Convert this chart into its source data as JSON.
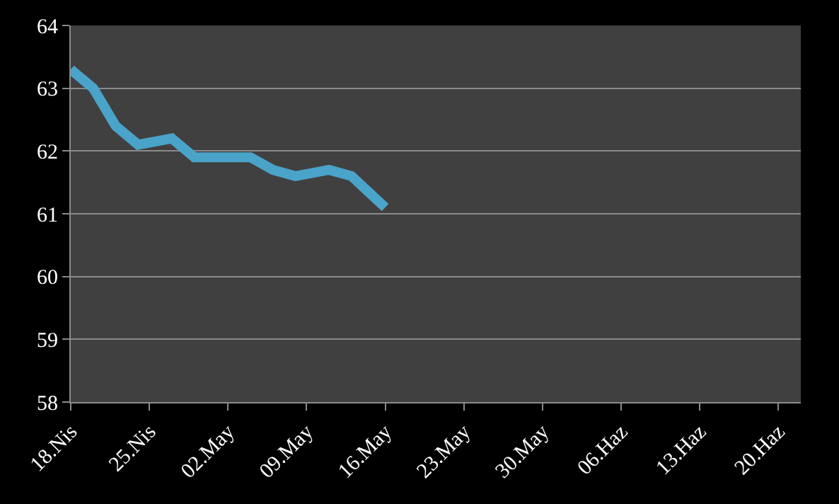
{
  "chart_data": {
    "type": "line",
    "x": [
      "--04-18",
      "--04-20",
      "--04-22",
      "--04-24",
      "--04-27",
      "--04-29",
      "--05-04",
      "--05-06",
      "--05-08",
      "--05-11",
      "--05-13",
      "--05-16"
    ],
    "series": [
      {
        "color": "#4aa3c8",
        "values": [
          63.3,
          63.0,
          62.4,
          62.1,
          62.2,
          61.9,
          61.9,
          61.7,
          61.6,
          61.7,
          61.6,
          61.1
        ]
      }
    ],
    "xlim": [
      "--04-18",
      "--06-22"
    ],
    "xticks": [
      {
        "value": "--04-18",
        "label": "18.Nis"
      },
      {
        "value": "--04-25",
        "label": "25.Nis"
      },
      {
        "value": "--05-02",
        "label": "02.May"
      },
      {
        "value": "--05-09",
        "label": "09.May"
      },
      {
        "value": "--05-16",
        "label": "16.May"
      },
      {
        "value": "--05-23",
        "label": "23.May"
      },
      {
        "value": "--05-30",
        "label": "30.May"
      },
      {
        "value": "--06-06",
        "label": "06.Haz"
      },
      {
        "value": "--06-13",
        "label": "13.Haz"
      },
      {
        "value": "--06-20",
        "label": "20.Haz"
      }
    ],
    "ylim": [
      58,
      64
    ],
    "yticks": [
      58,
      59,
      60,
      61,
      62,
      63,
      64
    ],
    "grid": "y",
    "legend": false,
    "marker": "none",
    "line_style": "solid"
  }
}
